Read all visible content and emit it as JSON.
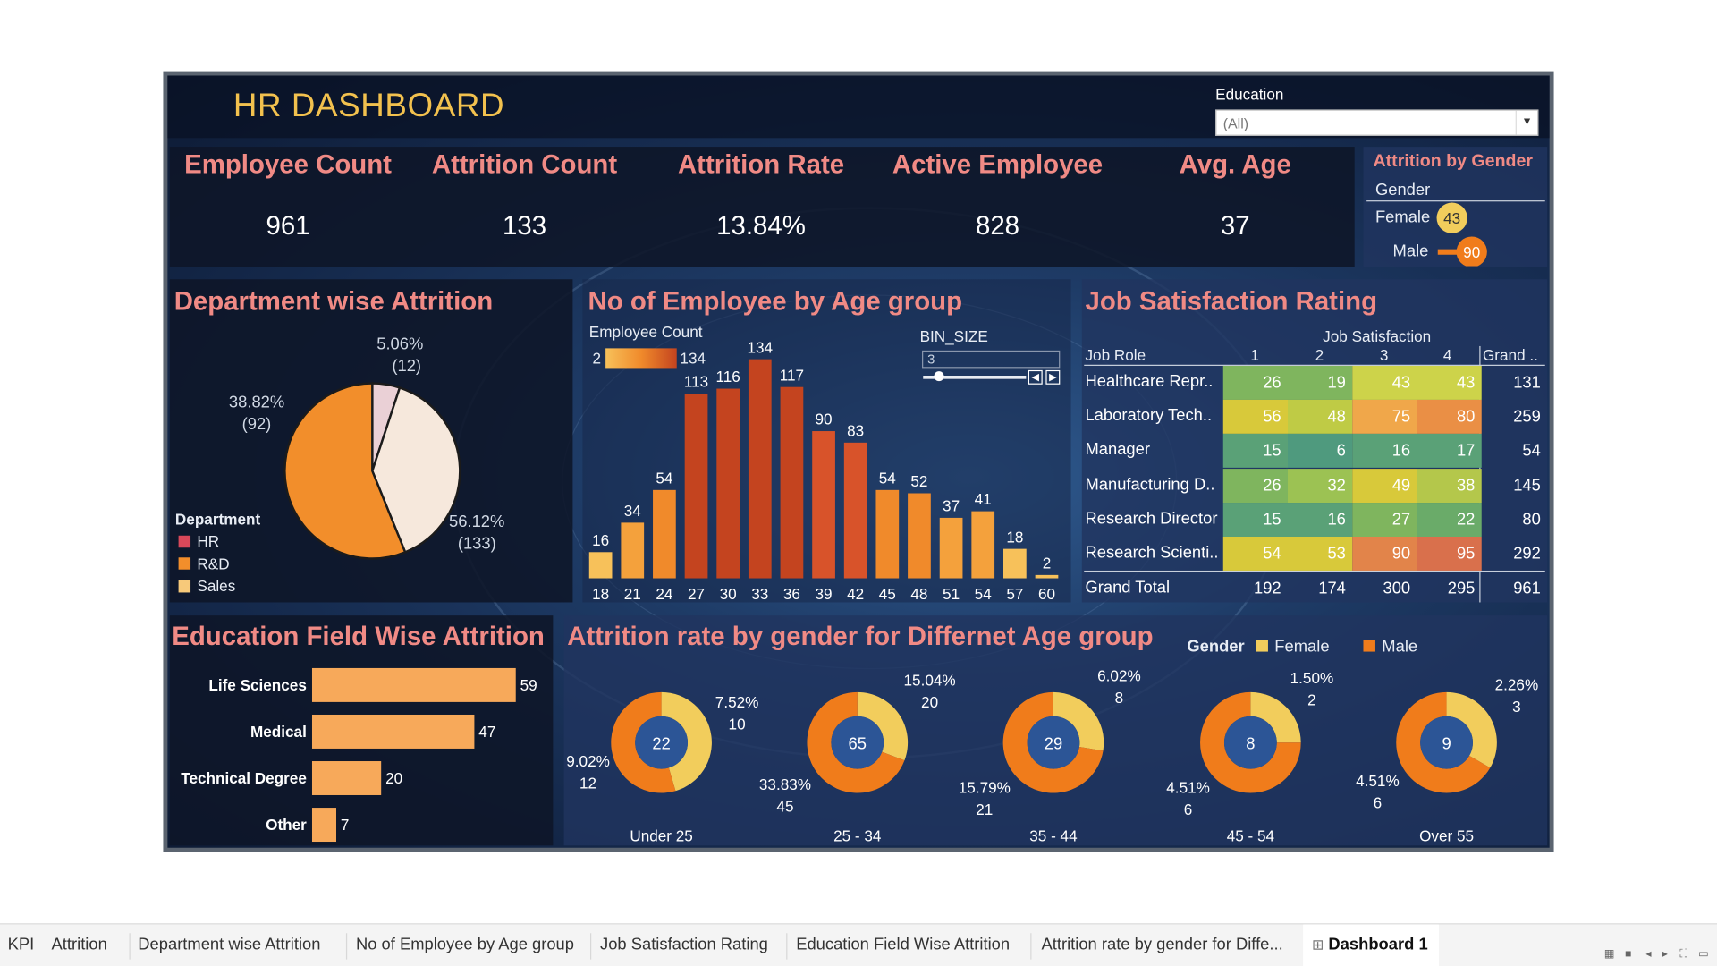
{
  "header": {
    "title": "HR DASHBOARD"
  },
  "filter": {
    "label": "Education",
    "value": "(All)"
  },
  "kpis": [
    {
      "label": "Employee Count",
      "value": "961"
    },
    {
      "label": "Attrition Count",
      "value": "133"
    },
    {
      "label": "Attrition Rate",
      "value": "13.84%"
    },
    {
      "label": "Active Employee",
      "value": "828"
    },
    {
      "label": "Avg. Age",
      "value": "37"
    }
  ],
  "gender_attrition": {
    "title": "Attrition by Gender",
    "col": "Gender",
    "rows": [
      {
        "label": "Female",
        "value": "43"
      },
      {
        "label": "Male",
        "value": "90"
      }
    ]
  },
  "department": {
    "title": "Department wise Attrition",
    "legend_title": "Department",
    "legend": [
      {
        "label": "HR",
        "color": "#d9485a"
      },
      {
        "label": "R&D",
        "color": "#f28e2b"
      },
      {
        "label": "Sales",
        "color": "#f7c97a"
      }
    ],
    "slices": [
      {
        "pct": "5.06%",
        "count": "(12)"
      },
      {
        "pct": "38.82%",
        "count": "(92)"
      },
      {
        "pct": "56.12%",
        "count": "(133)"
      }
    ]
  },
  "age_group": {
    "title": "No of Employee by Age group",
    "legend_title": "Employee Count",
    "legend_min": "2",
    "legend_max": "134",
    "bin_label": "BIN_SIZE",
    "bin_value": "3"
  },
  "job_satisfaction": {
    "title": "Job Satisfaction Rating",
    "col_title": "Job Satisfaction",
    "role_header": "Job Role",
    "levels": [
      "1",
      "2",
      "3",
      "4"
    ],
    "total_header": "Grand ..",
    "rows": [
      {
        "role": "Healthcare Repr..",
        "vals": [
          "26",
          "19",
          "43",
          "43"
        ],
        "total": "131"
      },
      {
        "role": "Laboratory Tech..",
        "vals": [
          "56",
          "48",
          "75",
          "80"
        ],
        "total": "259"
      },
      {
        "role": "Manager",
        "vals": [
          "15",
          "6",
          "16",
          "17"
        ],
        "total": "54"
      },
      {
        "role": "Manufacturing D..",
        "vals": [
          "26",
          "32",
          "49",
          "38"
        ],
        "total": "145"
      },
      {
        "role": "Research Director",
        "vals": [
          "15",
          "16",
          "27",
          "22"
        ],
        "total": "80"
      },
      {
        "role": "Research Scienti..",
        "vals": [
          "54",
          "53",
          "90",
          "95"
        ],
        "total": "292"
      }
    ],
    "grand_total": {
      "label": "Grand Total",
      "vals": [
        "192",
        "174",
        "300",
        "295"
      ],
      "total": "961"
    }
  },
  "education_field": {
    "title": "Education Field Wise Attrition"
  },
  "gender_age": {
    "title": "Attrition rate by gender for Differnet Age group",
    "legend_title": "Gender",
    "legend": [
      {
        "label": "Female",
        "color": "#f2cd5c"
      },
      {
        "label": "Male",
        "color": "#f07c1b"
      }
    ],
    "groups": [
      {
        "name": "Under 25",
        "center": "22",
        "female_pct": "7.52%",
        "female_n": "10",
        "male_pct": "9.02%",
        "male_n": "12"
      },
      {
        "name": "25 - 34",
        "center": "65",
        "female_pct": "15.04%",
        "female_n": "20",
        "male_pct": "33.83%",
        "male_n": "45"
      },
      {
        "name": "35 - 44",
        "center": "29",
        "female_pct": "6.02%",
        "female_n": "8",
        "male_pct": "15.79%",
        "male_n": "21"
      },
      {
        "name": "45 - 54",
        "center": "8",
        "female_pct": "1.50%",
        "female_n": "2",
        "male_pct": "4.51%",
        "male_n": "6"
      },
      {
        "name": "Over 55",
        "center": "9",
        "female_pct": "2.26%",
        "female_n": "3",
        "male_pct": "4.51%",
        "male_n": "6"
      }
    ]
  },
  "chart_data": [
    {
      "type": "pie",
      "title": "Department wise Attrition",
      "categories": [
        "HR",
        "Sales",
        "R&D"
      ],
      "values": [
        12,
        92,
        133
      ],
      "labels": [
        "5.06%",
        "38.82%",
        "56.12%"
      ]
    },
    {
      "type": "bar",
      "title": "No of Employee by Age group",
      "categories": [
        "18",
        "21",
        "24",
        "27",
        "30",
        "33",
        "36",
        "39",
        "42",
        "45",
        "48",
        "51",
        "54",
        "57",
        "60"
      ],
      "values": [
        16,
        34,
        54,
        113,
        116,
        134,
        117,
        90,
        83,
        54,
        52,
        37,
        41,
        18,
        2
      ],
      "ylim": [
        0,
        134
      ]
    },
    {
      "type": "bar",
      "title": "Education Field Wise Attrition",
      "orientation": "horizontal",
      "categories": [
        "Life Sciences",
        "Medical",
        "Technical Degree",
        "Other"
      ],
      "values": [
        59,
        47,
        20,
        7
      ]
    }
  ],
  "tabs": [
    "KPI",
    "Attrition",
    "Department wise Attrition",
    "No of Employee by Age group",
    "Job Satisfaction Rating",
    "Education Field Wise Attrition",
    "Attrition rate by gender for Diffe...",
    "Dashboard 1"
  ]
}
